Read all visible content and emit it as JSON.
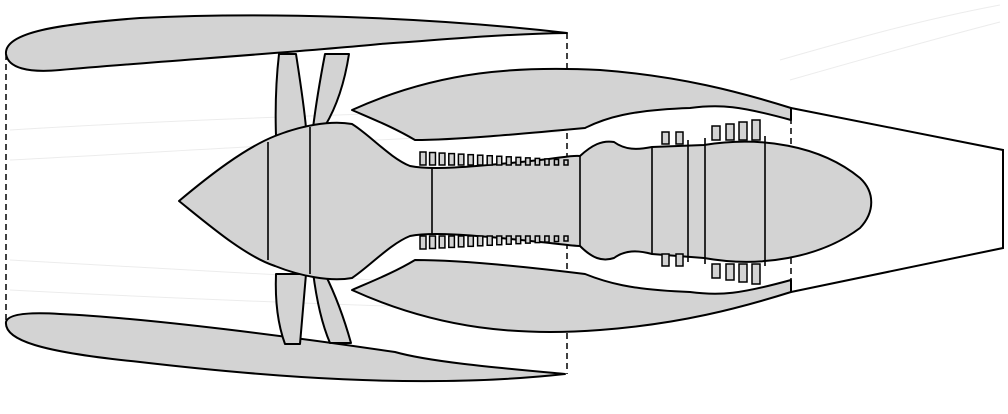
{
  "colors": {
    "body_fill": "#d3d3d3",
    "outline": "#000000",
    "background": "#ffffff",
    "flow_lines": "#ececec"
  },
  "diagram": {
    "subject": "turbofan-engine-cross-section",
    "labels": []
  }
}
